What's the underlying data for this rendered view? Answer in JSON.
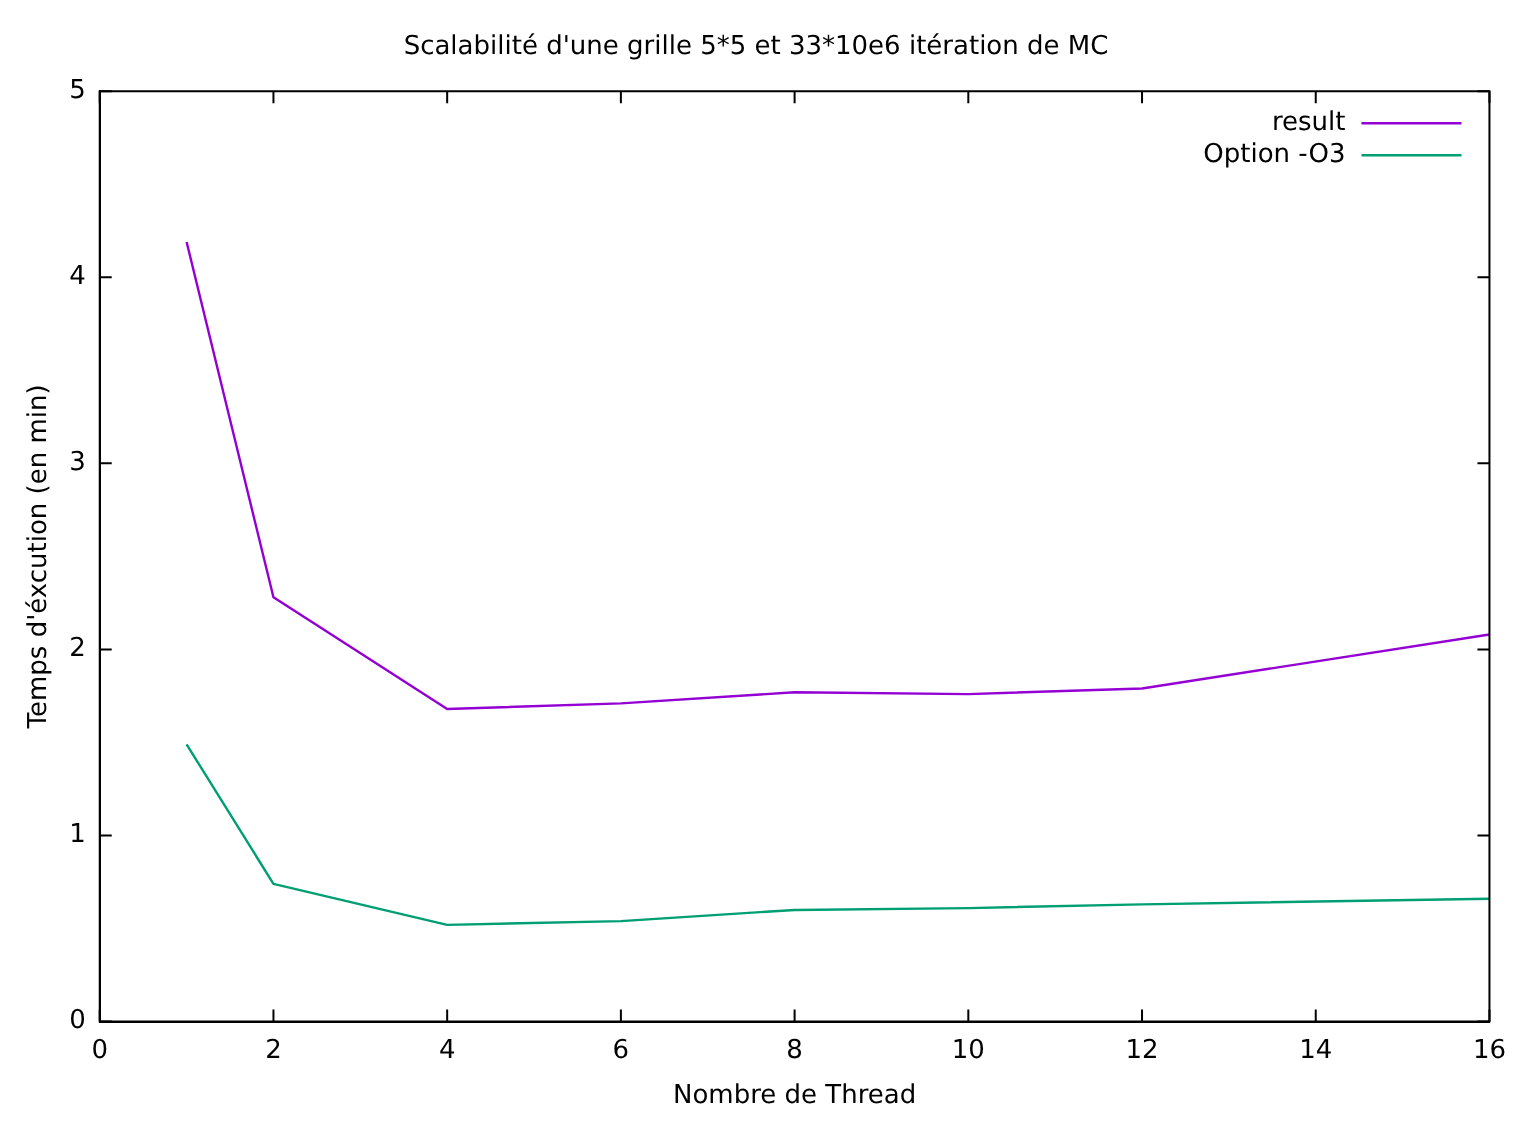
{
  "chart_data": {
    "type": "line",
    "title": "Scalabilité d'une grille 5*5 et 33*10e6 itération de MC",
    "xlabel": "Nombre de Thread",
    "ylabel": "Temps d'éxcution (en min)",
    "x": [
      1,
      2,
      4,
      6,
      8,
      10,
      12,
      16
    ],
    "series": [
      {
        "name": "result",
        "color": "#9400d3",
        "values": [
          4.19,
          2.28,
          1.68,
          1.71,
          1.77,
          1.76,
          1.79,
          2.08
        ]
      },
      {
        "name": "Option -O3",
        "color": "#009e73",
        "values": [
          1.49,
          0.74,
          0.52,
          0.54,
          0.6,
          0.61,
          0.63,
          0.66
        ]
      }
    ],
    "xlim": [
      0,
      16
    ],
    "xticks": [
      0,
      2,
      4,
      6,
      8,
      10,
      12,
      14,
      16
    ],
    "ylim": [
      0,
      5
    ],
    "yticks": [
      0,
      1,
      2,
      3,
      4,
      5
    ],
    "grid": false,
    "legend": "top right",
    "marker": "none",
    "line_style": "solid"
  }
}
